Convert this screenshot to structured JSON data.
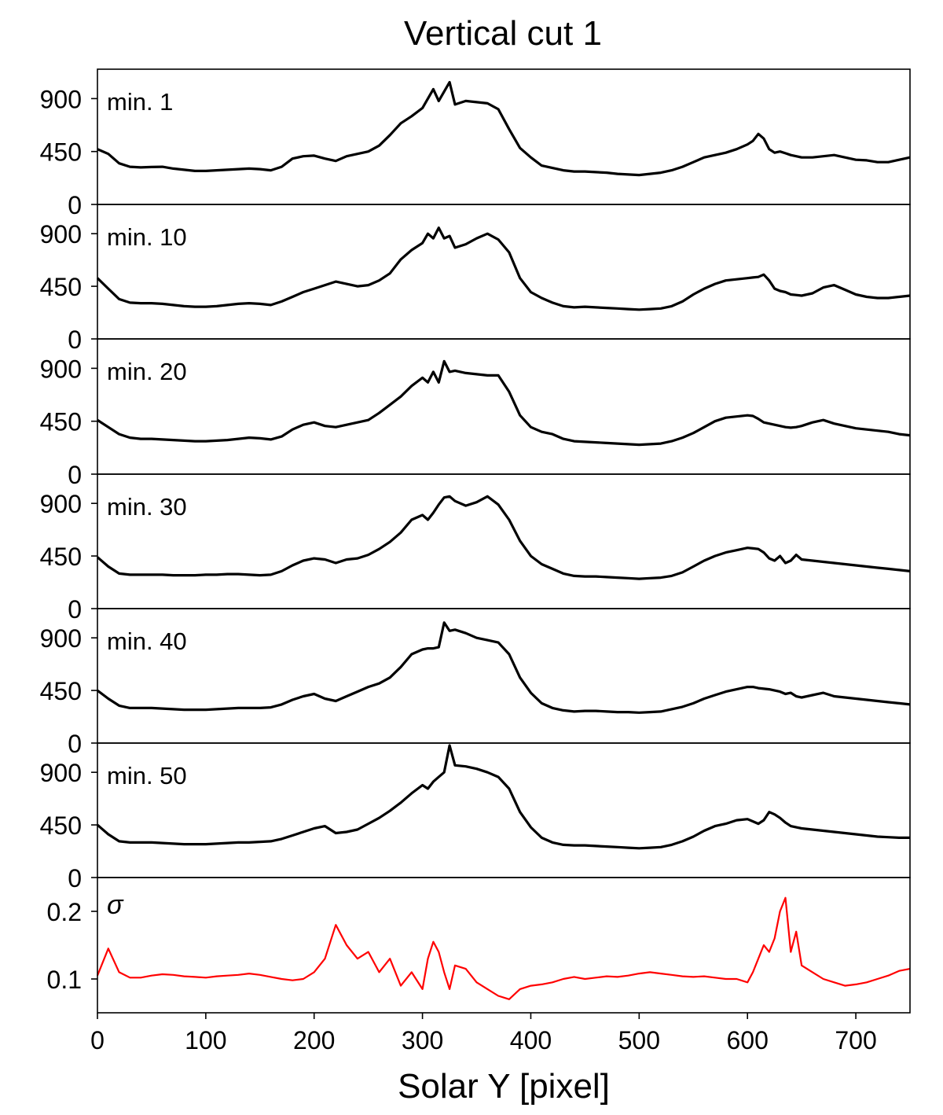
{
  "chart_data": {
    "title": "Vertical cut 1",
    "xlabel": "Solar Y [pixel]",
    "xlim": [
      0,
      750
    ],
    "x_ticks": [
      0,
      100,
      200,
      300,
      400,
      500,
      600,
      700
    ],
    "x": [
      0,
      10,
      20,
      30,
      40,
      50,
      60,
      70,
      80,
      90,
      100,
      110,
      120,
      130,
      140,
      150,
      160,
      170,
      180,
      190,
      200,
      210,
      220,
      230,
      240,
      250,
      260,
      270,
      280,
      290,
      300,
      305,
      310,
      315,
      320,
      325,
      330,
      340,
      350,
      360,
      370,
      380,
      390,
      400,
      410,
      420,
      430,
      440,
      450,
      460,
      470,
      480,
      490,
      500,
      510,
      520,
      530,
      540,
      550,
      560,
      570,
      580,
      590,
      600,
      605,
      610,
      615,
      620,
      625,
      630,
      635,
      640,
      645,
      650,
      660,
      670,
      680,
      690,
      700,
      710,
      720,
      730,
      740,
      750
    ],
    "panels": [
      {
        "label": "min. 1",
        "ylim": [
          0,
          1150
        ],
        "yticks": [
          0,
          450,
          900
        ],
        "color": "#000000",
        "values": [
          470,
          430,
          350,
          320,
          315,
          318,
          320,
          305,
          295,
          285,
          285,
          290,
          295,
          300,
          305,
          300,
          290,
          320,
          390,
          410,
          415,
          390,
          370,
          410,
          430,
          450,
          500,
          590,
          690,
          750,
          820,
          900,
          980,
          880,
          960,
          1040,
          850,
          880,
          870,
          860,
          810,
          640,
          480,
          400,
          330,
          310,
          290,
          280,
          280,
          275,
          270,
          260,
          255,
          250,
          260,
          270,
          290,
          320,
          360,
          400,
          420,
          440,
          470,
          510,
          540,
          600,
          560,
          470,
          440,
          450,
          435,
          420,
          410,
          400,
          400,
          410,
          420,
          400,
          380,
          375,
          360,
          360,
          380,
          400
        ]
      },
      {
        "label": "min. 10",
        "ylim": [
          0,
          1150
        ],
        "yticks": [
          0,
          450,
          900
        ],
        "color": "#000000",
        "values": [
          520,
          430,
          340,
          310,
          305,
          305,
          300,
          290,
          280,
          275,
          275,
          280,
          290,
          300,
          305,
          300,
          290,
          320,
          360,
          400,
          430,
          460,
          490,
          470,
          450,
          460,
          500,
          560,
          680,
          760,
          820,
          900,
          860,
          950,
          860,
          880,
          780,
          810,
          860,
          900,
          850,
          740,
          520,
          400,
          350,
          310,
          280,
          270,
          275,
          270,
          265,
          260,
          255,
          250,
          255,
          260,
          280,
          320,
          380,
          430,
          470,
          500,
          510,
          520,
          525,
          530,
          550,
          500,
          430,
          410,
          400,
          380,
          375,
          370,
          390,
          440,
          460,
          420,
          380,
          360,
          350,
          350,
          360,
          370
        ]
      },
      {
        "label": "min. 20",
        "ylim": [
          0,
          1150
        ],
        "yticks": [
          0,
          450,
          900
        ],
        "color": "#000000",
        "values": [
          460,
          400,
          340,
          310,
          300,
          300,
          295,
          290,
          285,
          280,
          280,
          285,
          290,
          300,
          310,
          305,
          295,
          320,
          380,
          420,
          440,
          410,
          400,
          420,
          440,
          460,
          520,
          590,
          660,
          750,
          820,
          780,
          870,
          780,
          960,
          870,
          880,
          860,
          850,
          840,
          840,
          700,
          500,
          400,
          360,
          340,
          300,
          280,
          275,
          270,
          265,
          260,
          255,
          250,
          255,
          260,
          280,
          310,
          350,
          400,
          450,
          480,
          490,
          500,
          495,
          470,
          440,
          430,
          420,
          410,
          400,
          395,
          400,
          410,
          440,
          460,
          430,
          410,
          390,
          380,
          370,
          360,
          340,
          330
        ]
      },
      {
        "label": "min. 30",
        "ylim": [
          0,
          1150
        ],
        "yticks": [
          0,
          450,
          900
        ],
        "color": "#000000",
        "values": [
          440,
          360,
          300,
          290,
          290,
          290,
          290,
          285,
          285,
          285,
          290,
          290,
          295,
          295,
          290,
          285,
          290,
          320,
          370,
          410,
          430,
          420,
          390,
          420,
          430,
          460,
          510,
          570,
          650,
          760,
          800,
          760,
          820,
          890,
          950,
          960,
          920,
          880,
          910,
          960,
          890,
          760,
          580,
          450,
          380,
          340,
          300,
          280,
          275,
          275,
          270,
          265,
          260,
          255,
          260,
          265,
          280,
          310,
          360,
          410,
          450,
          480,
          500,
          520,
          515,
          510,
          480,
          430,
          410,
          450,
          390,
          410,
          460,
          420,
          410,
          400,
          390,
          380,
          370,
          360,
          350,
          340,
          330,
          320
        ]
      },
      {
        "label": "min. 40",
        "ylim": [
          0,
          1150
        ],
        "yticks": [
          0,
          450,
          900
        ],
        "color": "#000000",
        "values": [
          450,
          380,
          320,
          300,
          300,
          300,
          295,
          290,
          285,
          285,
          285,
          290,
          295,
          300,
          300,
          300,
          305,
          330,
          370,
          400,
          420,
          380,
          360,
          400,
          440,
          480,
          510,
          560,
          650,
          760,
          800,
          810,
          810,
          820,
          1030,
          960,
          970,
          940,
          900,
          880,
          860,
          760,
          560,
          430,
          340,
          300,
          280,
          270,
          275,
          275,
          270,
          265,
          265,
          260,
          265,
          270,
          290,
          310,
          340,
          380,
          410,
          440,
          460,
          480,
          480,
          470,
          465,
          460,
          450,
          440,
          420,
          430,
          400,
          390,
          410,
          430,
          400,
          390,
          380,
          370,
          360,
          350,
          340,
          330
        ]
      },
      {
        "label": "min. 50",
        "ylim": [
          0,
          1150
        ],
        "yticks": [
          0,
          450,
          900
        ],
        "color": "#000000",
        "values": [
          450,
          370,
          310,
          300,
          300,
          300,
          295,
          290,
          285,
          285,
          285,
          290,
          295,
          300,
          300,
          305,
          310,
          330,
          360,
          390,
          420,
          440,
          380,
          390,
          410,
          460,
          510,
          570,
          640,
          720,
          790,
          760,
          820,
          860,
          900,
          1130,
          960,
          950,
          930,
          900,
          860,
          760,
          560,
          430,
          340,
          300,
          280,
          275,
          275,
          270,
          265,
          260,
          255,
          250,
          255,
          260,
          280,
          310,
          350,
          400,
          440,
          460,
          490,
          500,
          480,
          460,
          490,
          560,
          540,
          510,
          470,
          440,
          430,
          420,
          410,
          400,
          390,
          380,
          370,
          360,
          350,
          345,
          340,
          340
        ]
      },
      {
        "label": "σ",
        "ylim": [
          0.05,
          0.25
        ],
        "yticks": [
          0.1,
          0.2
        ],
        "color": "#ff0000",
        "values": [
          0.105,
          0.145,
          0.11,
          0.102,
          0.102,
          0.105,
          0.107,
          0.106,
          0.104,
          0.103,
          0.102,
          0.104,
          0.105,
          0.106,
          0.108,
          0.106,
          0.103,
          0.1,
          0.098,
          0.1,
          0.11,
          0.13,
          0.18,
          0.15,
          0.13,
          0.14,
          0.11,
          0.13,
          0.09,
          0.11,
          0.085,
          0.13,
          0.155,
          0.14,
          0.11,
          0.085,
          0.12,
          0.115,
          0.095,
          0.085,
          0.075,
          0.07,
          0.085,
          0.09,
          0.092,
          0.095,
          0.1,
          0.103,
          0.1,
          0.102,
          0.104,
          0.103,
          0.105,
          0.108,
          0.11,
          0.108,
          0.106,
          0.104,
          0.103,
          0.104,
          0.102,
          0.1,
          0.1,
          0.095,
          0.11,
          0.13,
          0.15,
          0.14,
          0.16,
          0.2,
          0.22,
          0.14,
          0.17,
          0.12,
          0.11,
          0.1,
          0.095,
          0.09,
          0.092,
          0.095,
          0.1,
          0.105,
          0.112,
          0.115
        ]
      }
    ]
  }
}
